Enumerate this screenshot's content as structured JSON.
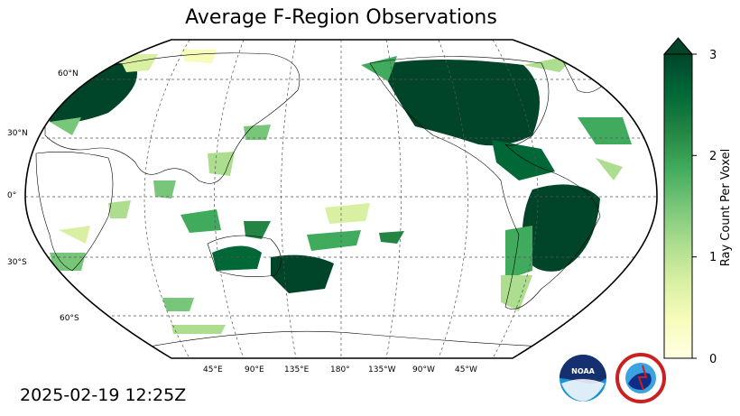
{
  "title": "Average F-Region Observations",
  "timestamp": "2025-02-19 12:25Z",
  "colorbar": {
    "label": "Ray Count Per Voxel",
    "ticks": [
      "0",
      "1",
      "2",
      "3"
    ],
    "min": 0,
    "max": 3,
    "extend": "max",
    "colormap": [
      "#ffffe5",
      "#f7fcb9",
      "#d9f0a3",
      "#addd8e",
      "#78c679",
      "#41ab5d",
      "#238443",
      "#006837",
      "#004529"
    ]
  },
  "map": {
    "projection": "Robinson",
    "central_longitude": "180°",
    "lat_labels": [
      "60°N",
      "30°N",
      "0°",
      "30°S",
      "60°S"
    ],
    "lon_labels": [
      "45°E",
      "90°E",
      "135°E",
      "180°",
      "135°W",
      "90°W",
      "45°W"
    ],
    "gridlines": "dashed"
  },
  "logos": [
    {
      "name": "noaa-logo",
      "text": "NOAA"
    },
    {
      "name": "nws-logo",
      "text": "NATIONAL WEATHER SERVICE"
    }
  ]
}
